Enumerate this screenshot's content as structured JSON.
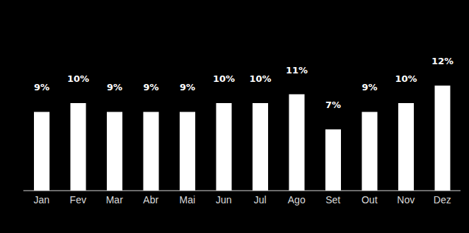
{
  "chart_data": {
    "type": "bar",
    "categories": [
      "Jan",
      "Fev",
      "Mar",
      "Abr",
      "Mai",
      "Jun",
      "Jul",
      "Ago",
      "Set",
      "Out",
      "Nov",
      "Dez"
    ],
    "values": [
      9,
      10,
      9,
      9,
      9,
      10,
      10,
      11,
      7,
      9,
      10,
      12
    ],
    "value_labels": [
      "9%",
      "10%",
      "9%",
      "9%",
      "9%",
      "10%",
      "10%",
      "11%",
      "7%",
      "9%",
      "10%",
      "12%"
    ],
    "data_labels": true,
    "color": "#ffffff",
    "ylim": [
      0,
      20
    ],
    "tick_labels": "x",
    "grid": false
  }
}
